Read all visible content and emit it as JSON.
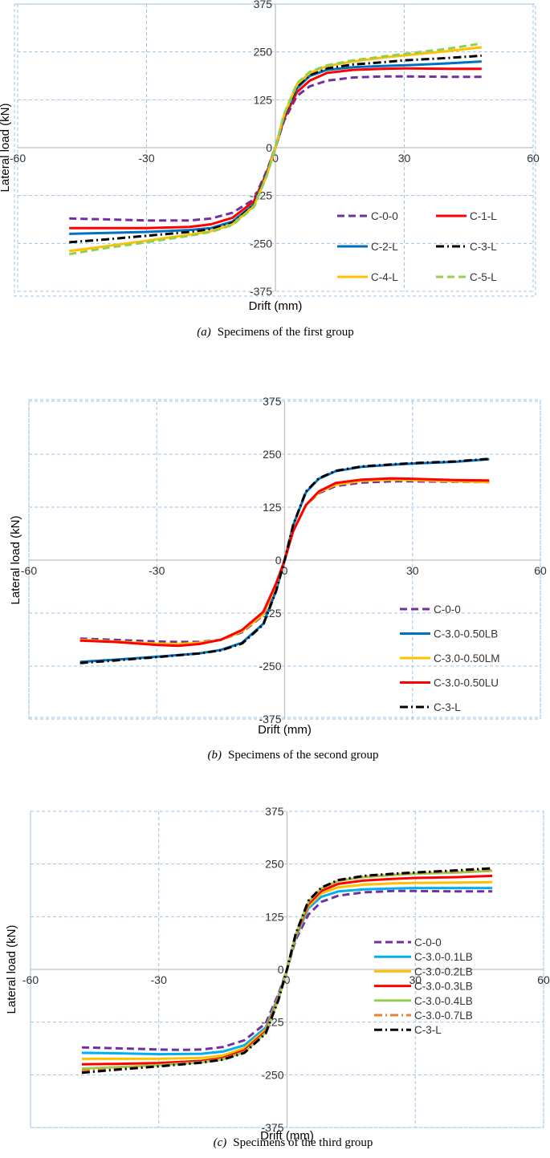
{
  "chart_data": [
    {
      "type": "line",
      "xlabel": "Drift (mm)",
      "ylabel": "Lateral load (kN)",
      "xlim": [
        -60,
        60
      ],
      "ylim": [
        -375,
        375
      ],
      "xticks": [
        "-60",
        "-30",
        "0",
        "30",
        "60"
      ],
      "yticks": [
        "375",
        "250",
        "125",
        "0",
        "-125",
        "-250",
        "-375"
      ],
      "grid": true,
      "legend_position": "lower-right",
      "caption_label": "(a)",
      "caption_text": "Specimens of the first group",
      "series": [
        {
          "name": "C-0-0",
          "color": "#7030a0",
          "dash": "dashed",
          "x": [
            -48,
            -40,
            -30,
            -20,
            -15,
            -10,
            -5,
            -2,
            0,
            2,
            5,
            8,
            12,
            18,
            25,
            30,
            40,
            48
          ],
          "y": [
            -185,
            -187,
            -190,
            -190,
            -185,
            -170,
            -135,
            -60,
            0,
            70,
            135,
            160,
            175,
            183,
            186,
            186,
            185,
            185
          ]
        },
        {
          "name": "C-1-L",
          "color": "#ff0000",
          "dash": "solid",
          "x": [
            -48,
            -40,
            -30,
            -20,
            -15,
            -10,
            -5,
            -2,
            0,
            2,
            5,
            8,
            12,
            18,
            25,
            30,
            40,
            48
          ],
          "y": [
            -210,
            -210,
            -210,
            -207,
            -200,
            -183,
            -140,
            -65,
            0,
            75,
            145,
            175,
            195,
            203,
            206,
            207,
            206,
            206
          ]
        },
        {
          "name": "C-2-L",
          "color": "#0070c0",
          "dash": "solid",
          "x": [
            -48,
            -40,
            -30,
            -20,
            -15,
            -10,
            -5,
            -2,
            0,
            2,
            5,
            8,
            12,
            18,
            25,
            30,
            40,
            48
          ],
          "y": [
            -225,
            -223,
            -220,
            -215,
            -210,
            -193,
            -148,
            -68,
            0,
            80,
            155,
            187,
            203,
            210,
            213,
            215,
            220,
            225
          ]
        },
        {
          "name": "C-3-L",
          "color": "#000000",
          "dash": "dashdot",
          "x": [
            -48,
            -40,
            -30,
            -20,
            -15,
            -10,
            -5,
            -2,
            0,
            2,
            5,
            8,
            12,
            18,
            25,
            30,
            40,
            48
          ],
          "y": [
            -247,
            -240,
            -230,
            -220,
            -213,
            -197,
            -150,
            -70,
            0,
            82,
            160,
            190,
            207,
            217,
            223,
            228,
            234,
            240
          ]
        },
        {
          "name": "C-4-L",
          "color": "#ffc000",
          "dash": "solid",
          "x": [
            -48,
            -40,
            -30,
            -20,
            -15,
            -10,
            -5,
            -2,
            0,
            2,
            5,
            8,
            12,
            18,
            25,
            30,
            40,
            48
          ],
          "y": [
            -270,
            -258,
            -243,
            -227,
            -218,
            -200,
            -153,
            -72,
            0,
            85,
            165,
            195,
            213,
            225,
            235,
            241,
            252,
            262
          ]
        },
        {
          "name": "C-5-L",
          "color": "#92d050",
          "dash": "dashed",
          "x": [
            -48,
            -40,
            -30,
            -20,
            -15,
            -10,
            -5,
            -2,
            0,
            2,
            5,
            8,
            12,
            18,
            25,
            30,
            40,
            48
          ],
          "y": [
            -278,
            -263,
            -247,
            -230,
            -220,
            -202,
            -155,
            -73,
            0,
            87,
            168,
            198,
            215,
            228,
            238,
            245,
            258,
            272
          ]
        }
      ]
    },
    {
      "type": "line",
      "xlabel": "Drift (mm)",
      "ylabel": "Lateral load (kN)",
      "xlim": [
        -60,
        60
      ],
      "ylim": [
        -375,
        375
      ],
      "xticks": [
        "-60",
        "-30",
        "0",
        "30",
        "60"
      ],
      "yticks": [
        "375",
        "250",
        "125",
        "0",
        "-125",
        "-250",
        "-375"
      ],
      "grid": true,
      "legend_position": "lower-right",
      "caption_label": "(b)",
      "caption_text": "Specimens of the second group",
      "series": [
        {
          "name": "C-0-0",
          "color": "#7030a0",
          "dash": "dashed",
          "x": [
            -48,
            -40,
            -30,
            -25,
            -20,
            -15,
            -10,
            -5,
            -2,
            0,
            2,
            5,
            8,
            12,
            18,
            25,
            30,
            40,
            48
          ],
          "y": [
            -185,
            -188,
            -192,
            -193,
            -193,
            -188,
            -170,
            -130,
            -60,
            0,
            70,
            130,
            158,
            175,
            183,
            186,
            186,
            185,
            184
          ]
        },
        {
          "name": "C-3.0-0.50LB",
          "color": "#0070c0",
          "dash": "solid",
          "x": [
            -48,
            -40,
            -30,
            -20,
            -15,
            -10,
            -5,
            -2,
            0,
            2,
            5,
            8,
            12,
            18,
            25,
            30,
            40,
            48
          ],
          "y": [
            -240,
            -235,
            -228,
            -220,
            -212,
            -195,
            -150,
            -72,
            0,
            82,
            160,
            192,
            210,
            220,
            225,
            228,
            232,
            238
          ]
        },
        {
          "name": "C-3.0-0.50LM",
          "color": "#ffc000",
          "dash": "solid",
          "x": [
            -48,
            -40,
            -30,
            -25,
            -20,
            -15,
            -10,
            -5,
            -2,
            0,
            2,
            5,
            8,
            12,
            18,
            25,
            30,
            40,
            48
          ],
          "y": [
            -188,
            -192,
            -197,
            -198,
            -195,
            -188,
            -168,
            -128,
            -58,
            0,
            70,
            130,
            160,
            178,
            187,
            190,
            189,
            186,
            184
          ]
        },
        {
          "name": "C-3.0-0.50LU",
          "color": "#ff0000",
          "dash": "solid",
          "x": [
            -48,
            -40,
            -30,
            -25,
            -20,
            -15,
            -10,
            -5,
            -2,
            0,
            2,
            5,
            8,
            12,
            18,
            25,
            30,
            40,
            48
          ],
          "y": [
            -190,
            -193,
            -200,
            -202,
            -198,
            -188,
            -165,
            -122,
            -55,
            0,
            68,
            130,
            162,
            182,
            190,
            193,
            192,
            189,
            188
          ]
        },
        {
          "name": "C-3-L",
          "color": "#000000",
          "dash": "dashdot",
          "x": [
            -48,
            -40,
            -30,
            -20,
            -15,
            -10,
            -5,
            -2,
            0,
            2,
            5,
            8,
            12,
            18,
            25,
            30,
            40,
            48
          ],
          "y": [
            -243,
            -237,
            -229,
            -220,
            -213,
            -197,
            -152,
            -73,
            0,
            83,
            162,
            193,
            211,
            221,
            226,
            229,
            233,
            239
          ]
        }
      ]
    },
    {
      "type": "line",
      "xlabel": "Drift (mm)",
      "ylabel": "Lateral load (kN)",
      "xlim": [
        -60,
        60
      ],
      "ylim": [
        -375,
        375
      ],
      "xticks": [
        "-60",
        "-30",
        "0",
        "30",
        "60"
      ],
      "yticks": [
        "375",
        "250",
        "125",
        "0",
        "-125",
        "-250",
        "-375"
      ],
      "grid": true,
      "legend_position": "lower-left",
      "caption_label": "(c)",
      "caption_text": "Specimens of the third group",
      "series": [
        {
          "name": "C-0-0",
          "color": "#7030a0",
          "dash": "dashed",
          "x": [
            -48,
            -40,
            -30,
            -25,
            -20,
            -15,
            -10,
            -5,
            -2,
            0,
            2,
            5,
            8,
            12,
            18,
            25,
            30,
            40,
            48
          ],
          "y": [
            -185,
            -187,
            -190,
            -191,
            -190,
            -184,
            -168,
            -128,
            -58,
            0,
            70,
            130,
            160,
            175,
            183,
            186,
            186,
            185,
            185
          ]
        },
        {
          "name": "C-3.0-0.1LB",
          "color": "#00b0f0",
          "dash": "solid",
          "x": [
            -48,
            -40,
            -30,
            -20,
            -15,
            -10,
            -5,
            -2,
            0,
            2,
            5,
            8,
            12,
            18,
            25,
            30,
            40,
            48
          ],
          "y": [
            -198,
            -199,
            -201,
            -200,
            -195,
            -180,
            -138,
            -63,
            0,
            75,
            145,
            172,
            185,
            190,
            192,
            193,
            193,
            193
          ]
        },
        {
          "name": "C-3.0-0.2LB",
          "color": "#ffc000",
          "dash": "solid",
          "x": [
            -48,
            -40,
            -30,
            -20,
            -15,
            -10,
            -5,
            -2,
            0,
            2,
            5,
            8,
            12,
            18,
            25,
            30,
            40,
            48
          ],
          "y": [
            -212,
            -212,
            -212,
            -210,
            -204,
            -187,
            -143,
            -66,
            0,
            78,
            150,
            180,
            195,
            201,
            204,
            205,
            206,
            207
          ]
        },
        {
          "name": "C-3.0-0.3LB",
          "color": "#ff0000",
          "dash": "solid",
          "x": [
            -48,
            -40,
            -30,
            -20,
            -15,
            -10,
            -5,
            -2,
            0,
            2,
            5,
            8,
            12,
            18,
            25,
            30,
            40,
            48
          ],
          "y": [
            -225,
            -224,
            -222,
            -217,
            -210,
            -192,
            -147,
            -68,
            0,
            80,
            155,
            186,
            203,
            211,
            215,
            217,
            219,
            222
          ]
        },
        {
          "name": "C-3.0-0.4LB",
          "color": "#92d050",
          "dash": "solid",
          "x": [
            -48,
            -40,
            -30,
            -20,
            -15,
            -10,
            -5,
            -2,
            0,
            2,
            5,
            8,
            12,
            18,
            25,
            30,
            40,
            48
          ],
          "y": [
            -235,
            -232,
            -227,
            -220,
            -213,
            -196,
            -150,
            -70,
            0,
            82,
            160,
            192,
            210,
            219,
            224,
            227,
            230,
            234
          ]
        },
        {
          "name": "C-3.0-0.7LB",
          "color": "#ed7d31",
          "dash": "dashdot",
          "x": [
            -48,
            -40,
            -30,
            -20,
            -15,
            -10,
            -5,
            -2,
            0,
            2,
            5,
            8,
            12,
            18,
            25,
            30,
            40,
            48
          ],
          "y": [
            -240,
            -236,
            -229,
            -221,
            -214,
            -197,
            -151,
            -71,
            0,
            83,
            161,
            193,
            211,
            221,
            226,
            229,
            233,
            237
          ]
        },
        {
          "name": "C-3-L",
          "color": "#000000",
          "dash": "dashdot",
          "x": [
            -48,
            -40,
            -30,
            -20,
            -15,
            -10,
            -5,
            -2,
            0,
            2,
            5,
            8,
            12,
            18,
            25,
            30,
            40,
            48
          ],
          "y": [
            -245,
            -238,
            -230,
            -221,
            -214,
            -198,
            -152,
            -72,
            0,
            84,
            163,
            194,
            212,
            222,
            227,
            230,
            235,
            240
          ]
        }
      ]
    }
  ]
}
